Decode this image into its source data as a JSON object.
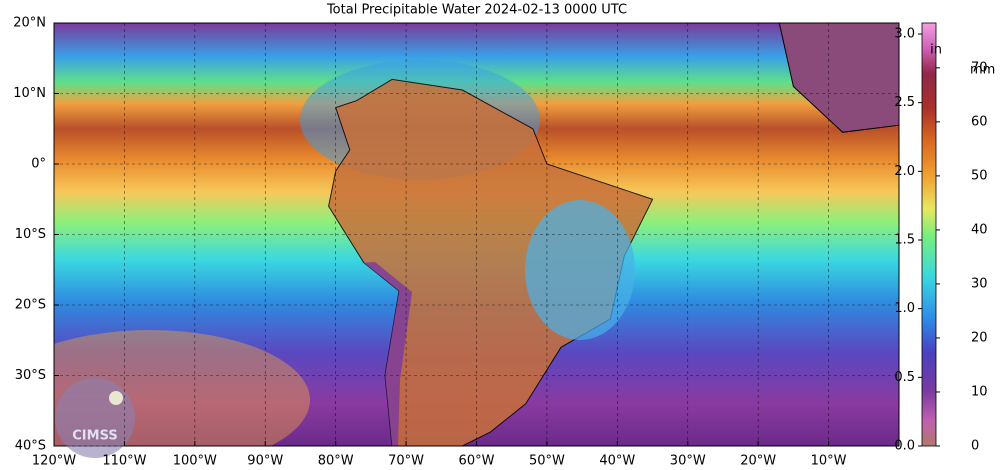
{
  "map": {
    "title": "Total Precipitable Water  2024-02-13 0000 UTC",
    "xlim": [
      -120,
      0
    ],
    "ylim": [
      -40,
      20
    ],
    "xticks": [
      {
        "value": -120,
        "label": "120°W"
      },
      {
        "value": -110,
        "label": "110°W"
      },
      {
        "value": -100,
        "label": "100°W"
      },
      {
        "value": -90,
        "label": "90°W"
      },
      {
        "value": -80,
        "label": "80°W"
      },
      {
        "value": -70,
        "label": "70°W"
      },
      {
        "value": -60,
        "label": "60°W"
      },
      {
        "value": -50,
        "label": "50°W"
      },
      {
        "value": -40,
        "label": "40°W"
      },
      {
        "value": -30,
        "label": "30°W"
      },
      {
        "value": -20,
        "label": "20°W"
      },
      {
        "value": -10,
        "label": "10°W"
      }
    ],
    "yticks": [
      {
        "value": 20,
        "label": "20°N"
      },
      {
        "value": 10,
        "label": "10°N"
      },
      {
        "value": 0,
        "label": "0°"
      },
      {
        "value": -10,
        "label": "10°S"
      },
      {
        "value": -20,
        "label": "20°S"
      },
      {
        "value": -30,
        "label": "30°S"
      },
      {
        "value": -40,
        "label": "40°S"
      }
    ],
    "grid": true,
    "colorbar": {
      "inches": {
        "unit": "in",
        "lim": [
          0,
          3.08
        ],
        "ticks": [
          {
            "value": 0,
            "label": "0.0"
          },
          0.5,
          {
            "value": 1,
            "label": "1.0"
          },
          1.5,
          {
            "value": 2,
            "label": "2.0"
          },
          2.5,
          {
            "value": 3,
            "label": "3.0"
          }
        ]
      },
      "mm": {
        "unit": "mm",
        "lim": [
          0,
          78.3
        ],
        "ticks": [
          0,
          10,
          20,
          30,
          40,
          50,
          60,
          70
        ]
      }
    },
    "logo": "CIMSS"
  }
}
